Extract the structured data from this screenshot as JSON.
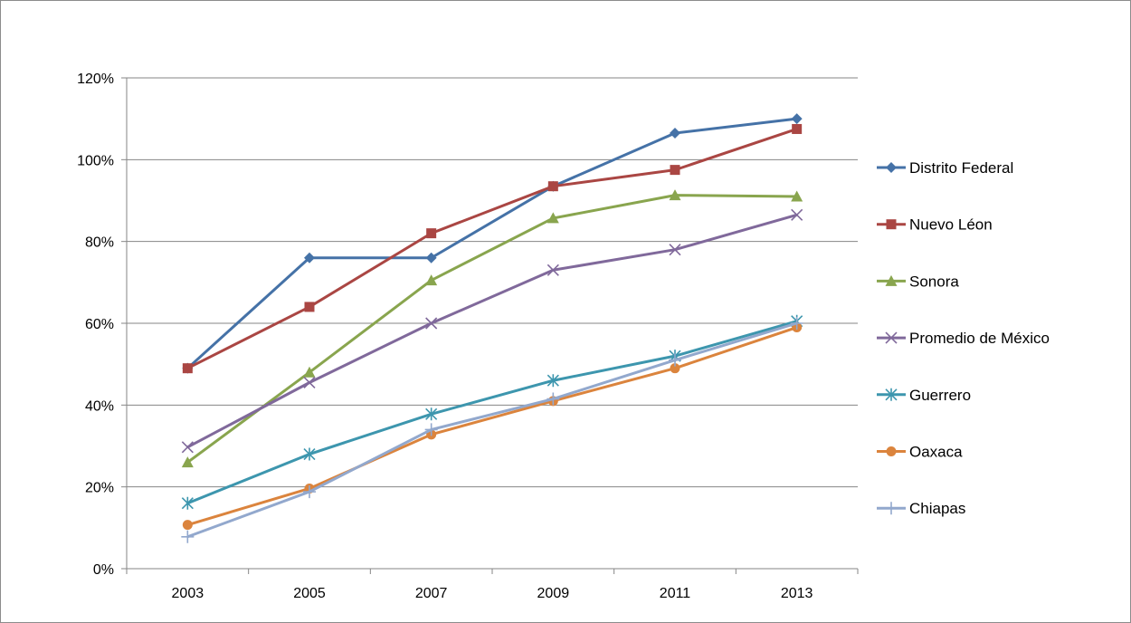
{
  "chart_data": {
    "type": "line",
    "title": "",
    "xlabel": "",
    "ylabel": "",
    "x": [
      "2003",
      "2005",
      "2007",
      "2009",
      "2011",
      "2013"
    ],
    "ylim": [
      0,
      1.2
    ],
    "yticks": [
      "0%",
      "20%",
      "40%",
      "60%",
      "80%",
      "100%",
      "120%"
    ],
    "grid": true,
    "legend_position": "right",
    "series": [
      {
        "name": "Distrito Federal",
        "color": "#4572A7",
        "marker": "diamond",
        "values": [
          0.49,
          0.76,
          0.76,
          0.935,
          1.065,
          1.1
        ]
      },
      {
        "name": "Nuevo Léon",
        "color": "#AA4643",
        "marker": "square",
        "values": [
          0.49,
          0.64,
          0.82,
          0.935,
          0.975,
          1.075
        ]
      },
      {
        "name": "Sonora",
        "color": "#89A54E",
        "marker": "triangle",
        "values": [
          0.26,
          0.48,
          0.705,
          0.857,
          0.913,
          0.91
        ]
      },
      {
        "name": "Promedio de México",
        "color": "#80699B",
        "marker": "x",
        "values": [
          0.297,
          0.455,
          0.6,
          0.73,
          0.78,
          0.865
        ]
      },
      {
        "name": "Guerrero",
        "color": "#3D96AE",
        "marker": "star",
        "values": [
          0.16,
          0.28,
          0.378,
          0.46,
          0.52,
          0.605
        ]
      },
      {
        "name": "Oaxaca",
        "color": "#DB843D",
        "marker": "circle",
        "values": [
          0.107,
          0.196,
          0.328,
          0.41,
          0.49,
          0.59
        ]
      },
      {
        "name": "Chiapas",
        "color": "#92A8CD",
        "marker": "plus",
        "values": [
          0.078,
          0.188,
          0.34,
          0.415,
          0.51,
          0.6
        ]
      }
    ]
  }
}
